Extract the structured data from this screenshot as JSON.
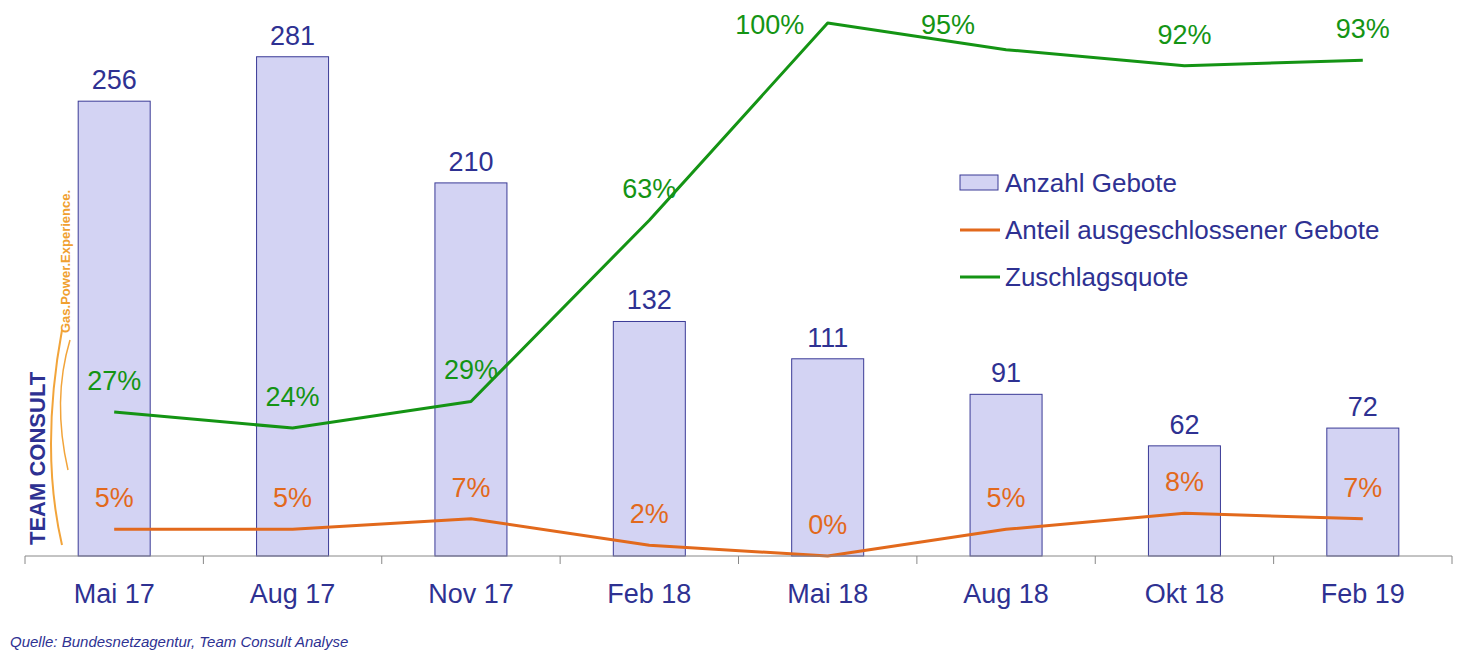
{
  "chart_data": {
    "type": "bar",
    "categories": [
      "Mai 17",
      "Aug 17",
      "Nov 17",
      "Feb 18",
      "Mai 18",
      "Aug 18",
      "Okt 18",
      "Feb 19"
    ],
    "series": [
      {
        "name": "Anzahl Gebote",
        "type": "bar",
        "color": "#d3d3f3",
        "values": [
          256,
          281,
          210,
          132,
          111,
          91,
          62,
          72
        ]
      },
      {
        "name": "Anteil ausgeschlossener Gebote",
        "type": "line",
        "color": "#e2691c",
        "axis": "y2",
        "values": [
          5,
          5,
          7,
          2,
          0,
          5,
          8,
          7
        ],
        "value_labels": [
          "5%",
          "5%",
          "7%",
          "2%",
          "0%",
          "5%",
          "8%",
          "7%"
        ]
      },
      {
        "name": "Zuschlagsquote",
        "type": "line",
        "color": "#149414",
        "axis": "y2",
        "values": [
          27,
          24,
          29,
          63,
          100,
          95,
          92,
          93
        ],
        "value_labels": [
          "27%",
          "24%",
          "29%",
          "63%",
          "100%",
          "95%",
          "92%",
          "93%"
        ]
      }
    ],
    "ylim": [
      0,
      300
    ],
    "y2lim": [
      0,
      100
    ],
    "data_labels": true,
    "tick_labels": "x",
    "legend": "right",
    "annotations": [
      "Quelle: Bundesnetzagentur,  Team Consult Analyse",
      "TEAM CONSULT",
      "Gas.Power.Experience."
    ]
  }
}
